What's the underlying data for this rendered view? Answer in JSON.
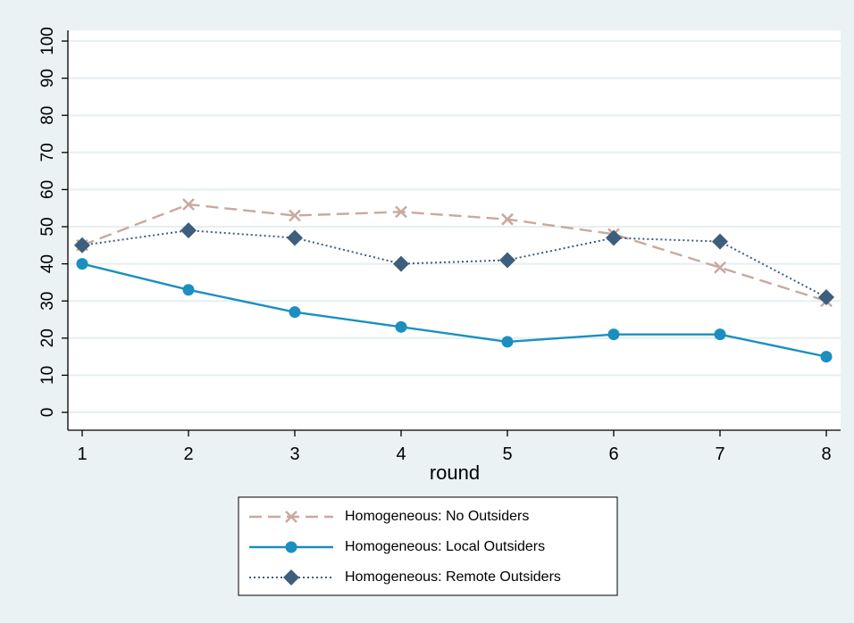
{
  "chart_data": {
    "type": "line",
    "xlabel": "round",
    "ylabel": "",
    "x": [
      1,
      2,
      3,
      4,
      5,
      6,
      7,
      8
    ],
    "xlim": [
      1,
      8
    ],
    "ylim": [
      0,
      100
    ],
    "yticks": [
      0,
      10,
      20,
      30,
      40,
      50,
      60,
      70,
      80,
      90,
      100
    ],
    "grid": true,
    "legend_position": "bottom",
    "series": [
      {
        "name": "Homogeneous: No Outsiders",
        "values": [
          45,
          56,
          53,
          54,
          52,
          48,
          39,
          30
        ],
        "color": "#c8a9a0",
        "line_style": "dashed",
        "marker": "x"
      },
      {
        "name": "Homogeneous: Local Outsiders",
        "values": [
          40,
          33,
          27,
          23,
          19,
          21,
          21,
          15
        ],
        "color": "#1b8fbf",
        "line_style": "solid",
        "marker": "circle"
      },
      {
        "name": "Homogeneous: Remote Outsiders",
        "values": [
          45,
          49,
          47,
          40,
          41,
          47,
          46,
          31
        ],
        "color": "#3e5e7e",
        "line_style": "dotted",
        "marker": "diamond"
      }
    ]
  }
}
